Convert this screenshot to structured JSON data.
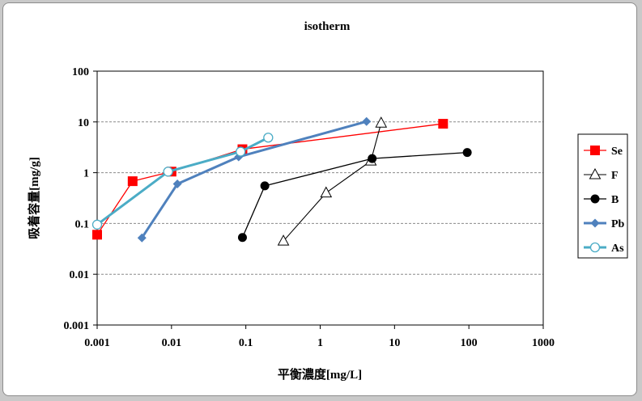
{
  "chart_data": {
    "type": "line",
    "title": "isotherm",
    "xlabel": "平衡濃度[mg/L]",
    "ylabel": "吸着容量[mg/g]",
    "x_scale": "log",
    "y_scale": "log",
    "xlim": [
      0.001,
      1000
    ],
    "ylim": [
      0.001,
      100
    ],
    "x_ticks": [
      "0.001",
      "0.01",
      "0.1",
      "1",
      "10",
      "100",
      "1000"
    ],
    "y_ticks": [
      "0.001",
      "0.01",
      "0.1",
      "1",
      "10",
      "100"
    ],
    "grid": "horizontal dashed",
    "legend_position": "right",
    "series": [
      {
        "name": "Se",
        "color": "#ff0000",
        "marker": "square-filled",
        "x": [
          0.001,
          0.003,
          0.01,
          0.09,
          45
        ],
        "y": [
          0.06,
          0.68,
          1.05,
          2.9,
          9.2
        ]
      },
      {
        "name": "F",
        "color": "#000000",
        "marker": "triangle-open",
        "x": [
          0.32,
          1.2,
          4.8,
          6.6
        ],
        "y": [
          0.045,
          0.4,
          1.7,
          9.5
        ]
      },
      {
        "name": "B",
        "color": "#000000",
        "marker": "circle-filled",
        "x": [
          0.09,
          0.18,
          5,
          95
        ],
        "y": [
          0.053,
          0.55,
          1.9,
          2.5
        ]
      },
      {
        "name": "Pb",
        "color": "#4f81bd",
        "marker": "diamond-filled",
        "x": [
          0.004,
          0.012,
          0.08,
          4.2
        ],
        "y": [
          0.052,
          0.6,
          2.05,
          10.2
        ]
      },
      {
        "name": "As",
        "color": "#4bacc6",
        "marker": "circle-open",
        "x": [
          0.001,
          0.009,
          0.085,
          0.2
        ],
        "y": [
          0.095,
          1.05,
          2.6,
          4.9
        ]
      }
    ]
  }
}
